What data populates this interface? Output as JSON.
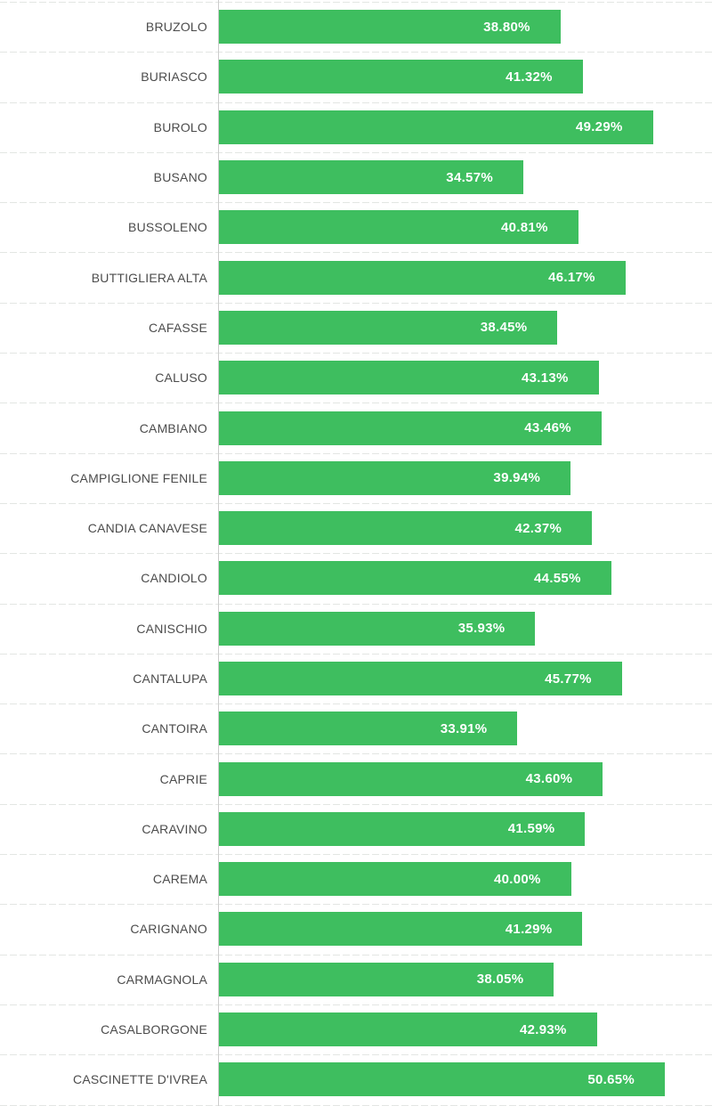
{
  "chart_data": {
    "type": "bar",
    "orientation": "horizontal",
    "title": "",
    "xlabel": "",
    "ylabel": "",
    "xlim": [
      0,
      56
    ],
    "grid": true,
    "legend": false,
    "categories": [
      "BRUZOLO",
      "BURIASCO",
      "BUROLO",
      "BUSANO",
      "BUSSOLENO",
      "BUTTIGLIERA ALTA",
      "CAFASSE",
      "CALUSO",
      "CAMBIANO",
      "CAMPIGLIONE FENILE",
      "CANDIA CANAVESE",
      "CANDIOLO",
      "CANISCHIO",
      "CANTALUPA",
      "CANTOIRA",
      "CAPRIE",
      "CARAVINO",
      "CAREMA",
      "CARIGNANO",
      "CARMAGNOLA",
      "CASALBORGONE",
      "CASCINETTE D'IVREA"
    ],
    "values": [
      38.8,
      41.32,
      49.29,
      34.57,
      40.81,
      46.17,
      38.45,
      43.13,
      43.46,
      39.94,
      42.37,
      44.55,
      35.93,
      45.77,
      33.91,
      43.6,
      41.59,
      40.0,
      41.29,
      38.05,
      42.93,
      50.65
    ],
    "value_labels": [
      "38.80%",
      "41.32%",
      "49.29%",
      "34.57%",
      "40.81%",
      "46.17%",
      "38.45%",
      "43.13%",
      "43.46%",
      "39.94%",
      "42.37%",
      "44.55%",
      "35.93%",
      "45.77%",
      "33.91%",
      "43.60%",
      "41.59%",
      "40.00%",
      "41.29%",
      "38.05%",
      "42.93%",
      "50.65%"
    ],
    "colors": {
      "bar": "#3ebe5f",
      "category_label": "#4c4c4c",
      "value_label": "#ffffff",
      "gridline": "#e3e6e3",
      "axis_line": "#cccccc",
      "background": "#ffffff"
    }
  }
}
